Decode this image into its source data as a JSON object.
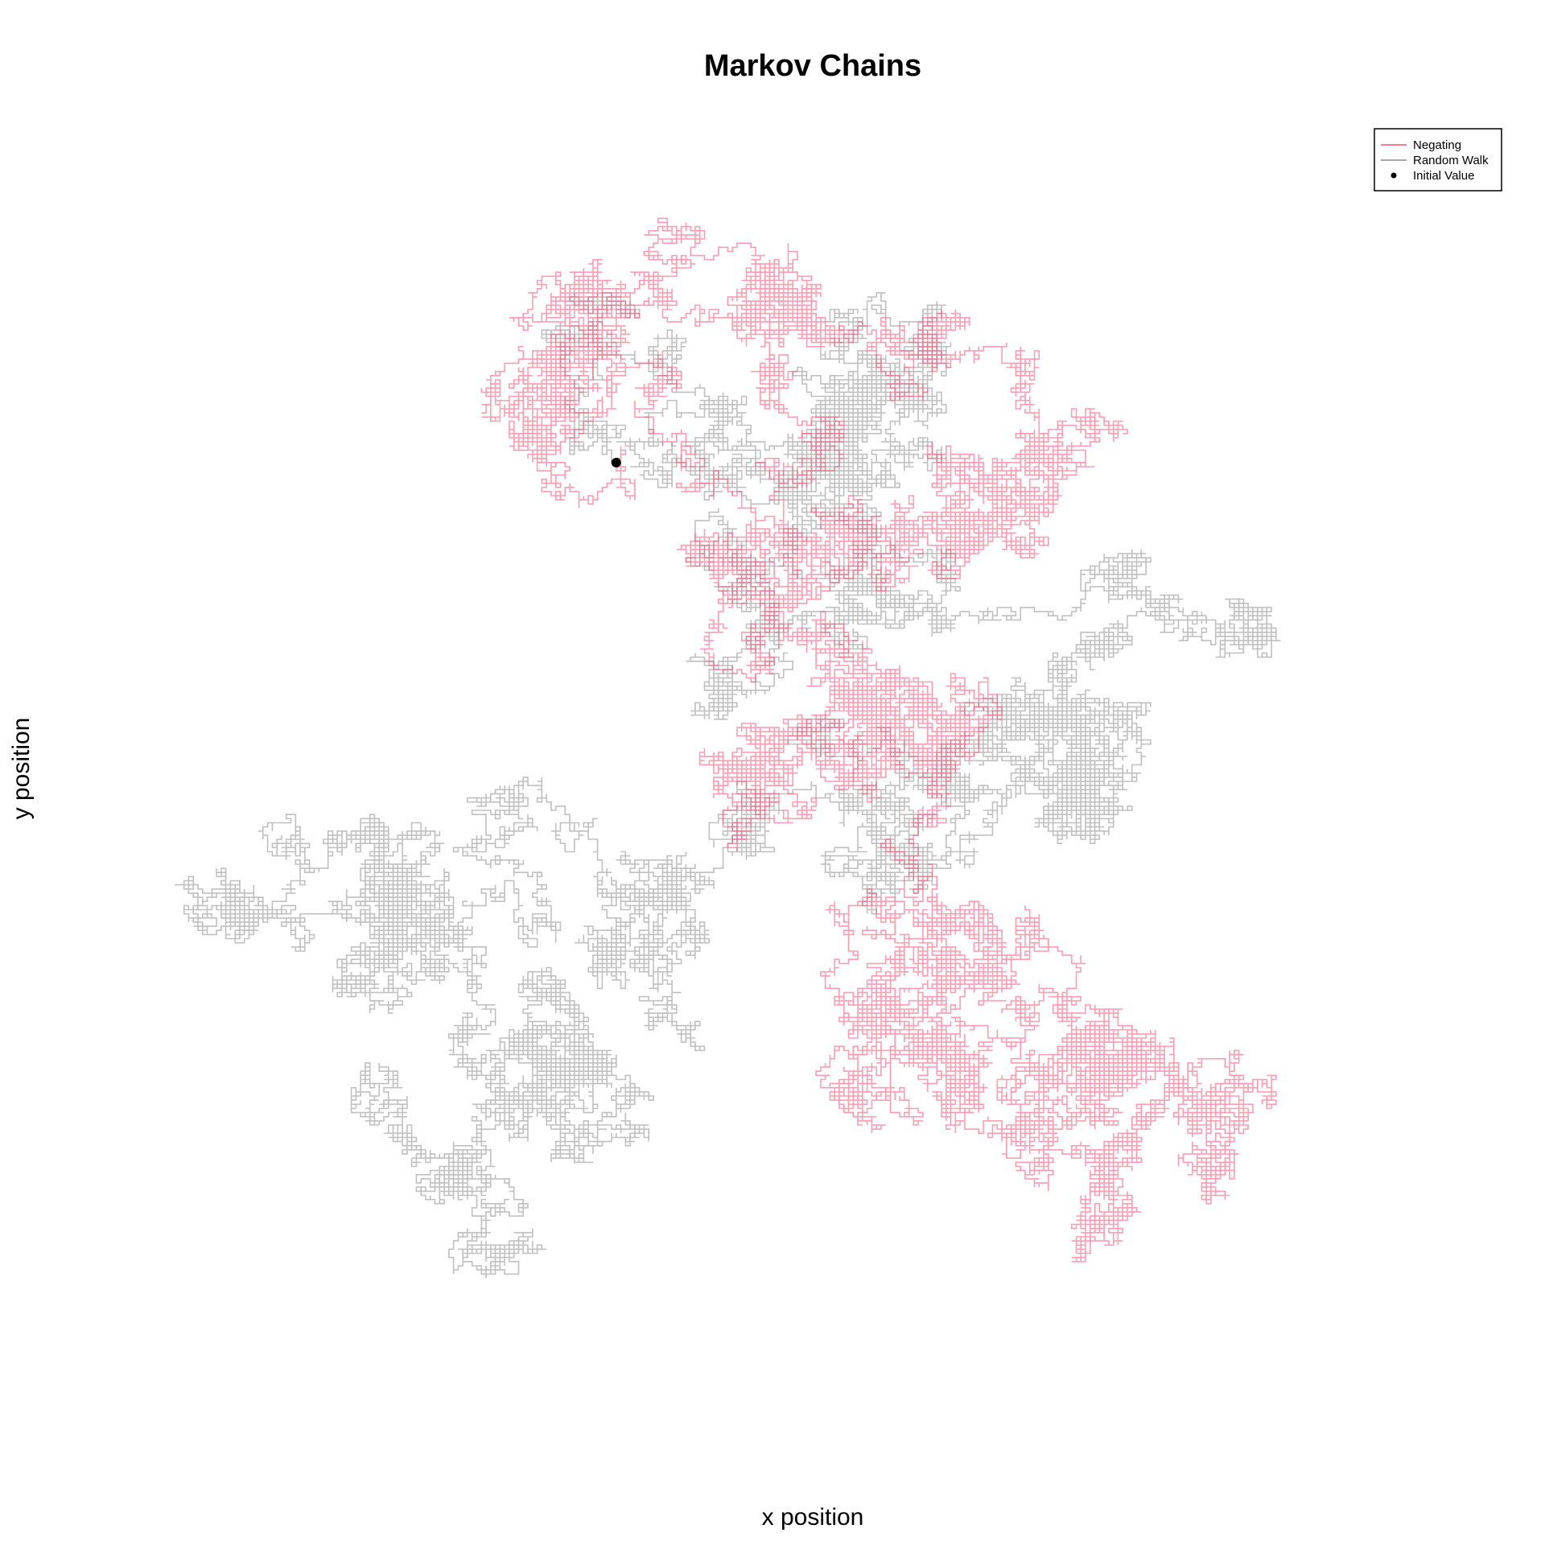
{
  "chart_data": {
    "type": "line",
    "title": "Markov Chains",
    "xlabel": "x position",
    "ylabel": "y position",
    "grid": false,
    "axes_visible": false,
    "xlim": [
      0,
      1
    ],
    "ylim": [
      0,
      1
    ],
    "legend": {
      "position": "top-right",
      "entries": [
        {
          "label": "Negating",
          "kind": "line",
          "color": "#ff4b73"
        },
        {
          "label": "Random Walk",
          "kind": "line",
          "color": "#8c8c8c"
        },
        {
          "label": "Initial Value",
          "kind": "point",
          "color": "#000000"
        }
      ]
    },
    "initial_value": {
      "x": 0.355,
      "y": 0.745
    },
    "series": [
      {
        "name": "Negating",
        "color": "#ff4b73",
        "seed": 7,
        "steps": 36000,
        "step_size": 0.0035,
        "start": [
          0.355,
          0.745
        ],
        "waypoints": [
          [
            0.3,
            0.76
          ],
          [
            0.37,
            0.79
          ],
          [
            0.44,
            0.86
          ],
          [
            0.5,
            0.85
          ],
          [
            0.56,
            0.81
          ],
          [
            0.67,
            0.76
          ],
          [
            0.62,
            0.7
          ],
          [
            0.53,
            0.69
          ],
          [
            0.46,
            0.6
          ],
          [
            0.54,
            0.56
          ],
          [
            0.62,
            0.5
          ],
          [
            0.55,
            0.47
          ],
          [
            0.44,
            0.48
          ],
          [
            0.56,
            0.42
          ],
          [
            0.6,
            0.35
          ],
          [
            0.54,
            0.3
          ],
          [
            0.66,
            0.28
          ],
          [
            0.73,
            0.23
          ],
          [
            0.8,
            0.2
          ],
          [
            0.72,
            0.16
          ],
          [
            0.64,
            0.22
          ],
          [
            0.57,
            0.26
          ]
        ]
      },
      {
        "name": "Random Walk",
        "color": "#8c8c8c",
        "seed": 42,
        "steps": 38000,
        "step_size": 0.0035,
        "start": [
          0.355,
          0.745
        ],
        "waypoints": [
          [
            0.43,
            0.72
          ],
          [
            0.52,
            0.77
          ],
          [
            0.6,
            0.84
          ],
          [
            0.54,
            0.72
          ],
          [
            0.44,
            0.64
          ],
          [
            0.6,
            0.65
          ],
          [
            0.72,
            0.65
          ],
          [
            0.69,
            0.56
          ],
          [
            0.64,
            0.5
          ],
          [
            0.73,
            0.45
          ],
          [
            0.62,
            0.41
          ],
          [
            0.56,
            0.4
          ],
          [
            0.46,
            0.42
          ],
          [
            0.4,
            0.39
          ],
          [
            0.3,
            0.36
          ],
          [
            0.2,
            0.4
          ],
          [
            0.09,
            0.36
          ],
          [
            0.16,
            0.3
          ],
          [
            0.3,
            0.27
          ],
          [
            0.36,
            0.2
          ],
          [
            0.25,
            0.16
          ],
          [
            0.16,
            0.21
          ]
        ]
      }
    ]
  }
}
